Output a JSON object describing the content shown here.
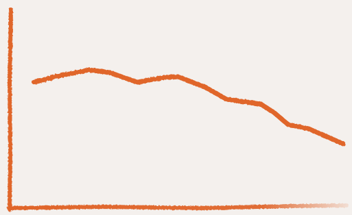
{
  "chart_data": {
    "type": "line",
    "x": [
      7.2,
      13.4,
      23.7,
      29.9,
      38.1,
      46.4,
      50.5,
      58.8,
      64.9,
      75.3,
      79.4,
      83.5,
      89.7,
      100
    ],
    "values": [
      63.5,
      66.3,
      69.8,
      68.4,
      63.5,
      66.0,
      66.3,
      60.8,
      54.9,
      52.4,
      47.9,
      42.0,
      39.9,
      32.3
    ],
    "color": "#e0662c",
    "xlim": [
      0,
      100
    ],
    "ylim": [
      0,
      100
    ]
  }
}
